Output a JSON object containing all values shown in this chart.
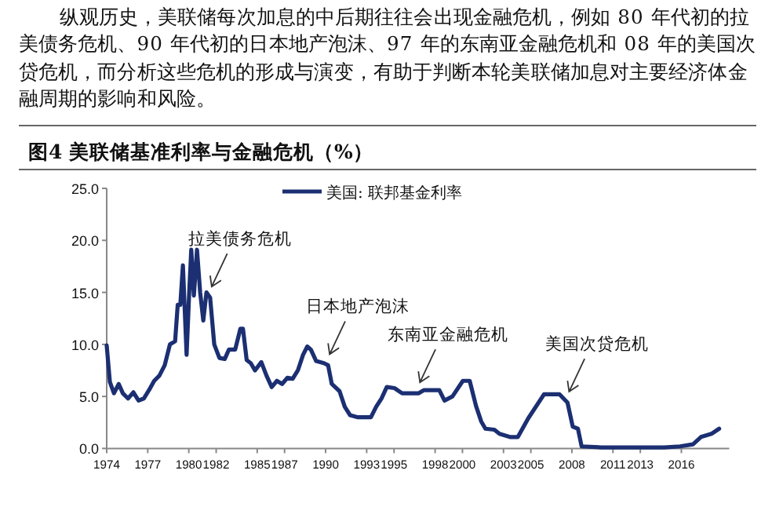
{
  "chart_data": {
    "type": "line",
    "title": "图4  美联储基准利率与金融危机（%）",
    "annotations": [
      "纵观历史，美联储每次加息的中后期往往会出现金融危机，例如 80 年代初的拉美债务危机、90 年代初的日本地产泡沫、97 年的东南亚金融危机和 08 年的美国次贷危机，而分析这些危机的形成与演变，有助于判断本轮美联储加息对主要经济体金融周期的影响和风险。",
      {
        "text": "拉美债务危机",
        "x": 1981.56,
        "y": 14.5
      },
      {
        "text": "日本地产泡沫",
        "x": 1990.18,
        "y": 8.0
      },
      {
        "text": "东南亚金融危机",
        "x": 1996.78,
        "y": 5.3
      },
      {
        "text": "美国次贷危机",
        "x": 2007.68,
        "y": 4.4
      }
    ],
    "x": [
      1974.0,
      1974.23,
      1974.53,
      1974.88,
      1975.18,
      1975.56,
      1975.95,
      1976.33,
      1976.71,
      1977.09,
      1977.47,
      1977.85,
      1978.24,
      1978.62,
      1979.0,
      1979.19,
      1979.38,
      1979.57,
      1979.84,
      1980.03,
      1980.18,
      1980.37,
      1980.6,
      1980.83,
      1981.06,
      1981.29,
      1981.56,
      1981.86,
      1982.24,
      1982.63,
      1982.93,
      1983.39,
      1983.77,
      1983.96,
      1984.23,
      1984.53,
      1984.84,
      1985.3,
      1985.68,
      1986.06,
      1986.44,
      1986.82,
      1987.21,
      1987.59,
      1987.97,
      1988.35,
      1988.66,
      1988.92,
      1989.31,
      1989.88,
      1990.18,
      1990.45,
      1991.02,
      1991.4,
      1991.79,
      1992.36,
      1993.31,
      1993.69,
      1994.08,
      1994.47,
      1995.03,
      1995.6,
      1996.78,
      1997.17,
      1998.31,
      1998.69,
      1999.27,
      2000.03,
      2000.53,
      2000.99,
      2001.37,
      2001.68,
      2002.33,
      2002.71,
      2003.47,
      2004.05,
      2004.81,
      2005.96,
      2007.1,
      2007.68,
      2008.06,
      2008.44,
      2008.71,
      2010.16,
      2012.07,
      2014.75,
      2015.9,
      2016.85,
      2017.43,
      2018.19,
      2018.76
    ],
    "series": [
      {
        "name": "美国: 联邦基金利率",
        "color": "#1b2f72",
        "values": [
          9.9,
          6.4,
          5.3,
          6.2,
          5.3,
          4.8,
          5.4,
          4.6,
          4.8,
          5.6,
          6.5,
          7.0,
          8.0,
          10.0,
          10.3,
          13.8,
          13.8,
          17.6,
          9.0,
          15.0,
          19.1,
          14.7,
          19.1,
          15.0,
          12.3,
          15.0,
          14.5,
          10.0,
          8.7,
          8.6,
          9.5,
          9.5,
          11.5,
          11.5,
          8.5,
          8.2,
          7.5,
          8.3,
          7.0,
          5.9,
          6.5,
          6.2,
          6.8,
          6.7,
          7.5,
          9.0,
          9.8,
          9.5,
          8.4,
          8.2,
          8.0,
          6.2,
          5.5,
          4.0,
          3.2,
          3.0,
          3.0,
          4.0,
          4.8,
          5.9,
          5.8,
          5.3,
          5.3,
          5.6,
          5.6,
          4.6,
          5.0,
          6.5,
          6.5,
          4.1,
          2.6,
          1.9,
          1.8,
          1.4,
          1.1,
          1.1,
          2.9,
          5.2,
          5.2,
          4.4,
          2.1,
          1.9,
          0.2,
          0.1,
          0.1,
          0.1,
          0.2,
          0.4,
          1.1,
          1.4,
          1.9
        ]
      }
    ],
    "xlim": [
      1974,
      2019.5
    ],
    "xticks": [
      1974,
      1977,
      1980,
      1982,
      1985,
      1987,
      1990,
      1993,
      1995,
      1998,
      2000,
      2003,
      2005,
      2008,
      2011,
      2013,
      2016
    ],
    "ylim": [
      0,
      25
    ],
    "yticks": [
      {
        "value": 0,
        "label": "0.0"
      },
      {
        "value": 5,
        "label": "5.0"
      },
      {
        "value": 10,
        "label": "10.0"
      },
      {
        "value": 15,
        "label": "15.0"
      },
      {
        "value": 20,
        "label": "20.0"
      },
      {
        "value": 25,
        "label": "25.0"
      }
    ],
    "legend": "top",
    "grid": false
  }
}
